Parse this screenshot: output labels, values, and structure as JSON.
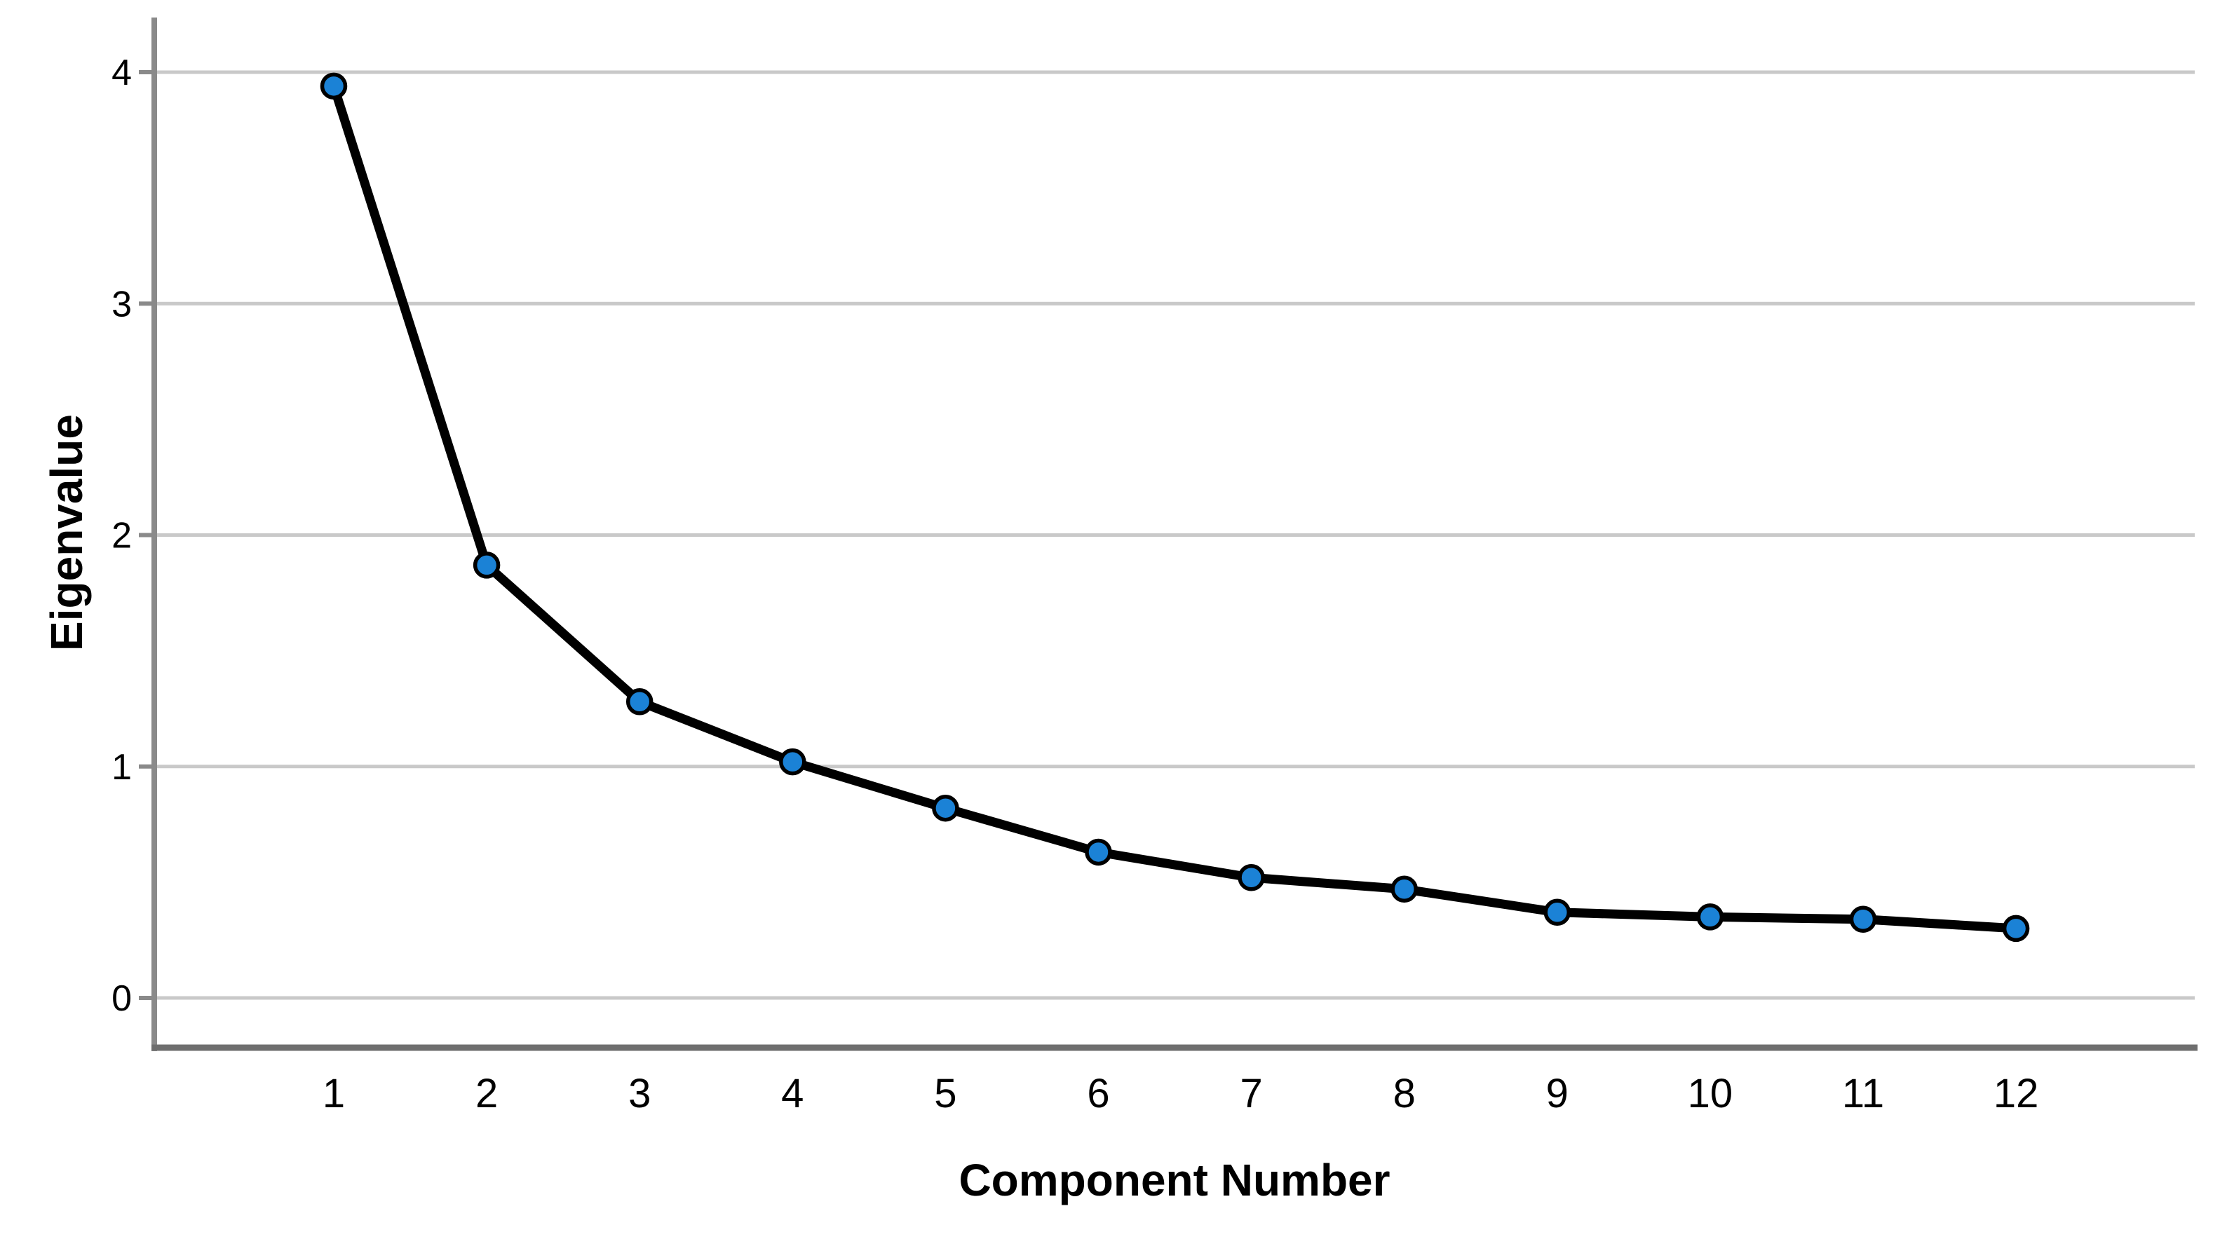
{
  "page": {
    "background": "#ffffff"
  },
  "chart_data": {
    "type": "line",
    "title": "",
    "xlabel": "Component Number",
    "ylabel": "Eigenvalue",
    "categories": [
      1,
      2,
      3,
      4,
      5,
      6,
      7,
      8,
      9,
      10,
      11,
      12
    ],
    "xticklabels": [
      "1",
      "2",
      "3",
      "4",
      "5",
      "6",
      "7",
      "8",
      "9",
      "10",
      "11",
      "12"
    ],
    "series": [
      {
        "name": "Eigenvalue",
        "values": [
          3.94,
          1.87,
          1.28,
          1.02,
          0.82,
          0.63,
          0.52,
          0.47,
          0.37,
          0.35,
          0.34,
          0.3
        ]
      }
    ],
    "yticks": [
      0,
      1,
      2,
      3,
      4
    ],
    "yticklabels": [
      "0",
      "1",
      "2",
      "3",
      "4"
    ],
    "ylim": [
      -0.21,
      4.24
    ],
    "xlim": [
      -0.17,
      13.17
    ],
    "grid": "horizontal-only",
    "legend": "none",
    "marker": "circle",
    "colors": {
      "marker_fill": "#1b82d6",
      "marker_stroke": "#000000",
      "line": "#000000",
      "gridline": "#c9c9c9",
      "axis_left": "#8a8a8a",
      "axis_bottom": "#6e6e6e",
      "text": "#000000",
      "background": "#ffffff"
    }
  }
}
